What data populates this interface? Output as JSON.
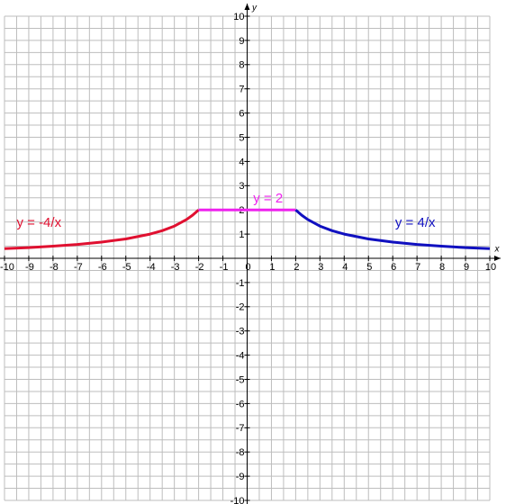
{
  "chart_data": {
    "type": "line",
    "xlabel": "x",
    "ylabel": "y",
    "xlim": [
      -10,
      10
    ],
    "ylim": [
      -10,
      10
    ],
    "xticks": [
      -10,
      -9,
      -8,
      -7,
      -6,
      -5,
      -4,
      -3,
      -2,
      -1,
      0,
      1,
      2,
      3,
      4,
      5,
      6,
      7,
      8,
      9,
      10
    ],
    "yticks": [
      -10,
      -9,
      -8,
      -7,
      -6,
      -5,
      -4,
      -3,
      -2,
      -1,
      1,
      2,
      3,
      4,
      5,
      6,
      7,
      8,
      9,
      10
    ],
    "grid": true,
    "minor_grid": true,
    "series": [
      {
        "name": "y = -4/x",
        "color": "#e01030",
        "x": [
          -10,
          -9,
          -8,
          -7,
          -6,
          -5,
          -4,
          -3.5,
          -3,
          -2.5,
          -2.25,
          -2
        ],
        "values": [
          0.4,
          0.44,
          0.5,
          0.57,
          0.67,
          0.8,
          1,
          1.14,
          1.33,
          1.6,
          1.78,
          2
        ]
      },
      {
        "name": "y = 2",
        "color": "#ee22ee",
        "x": [
          -2,
          2
        ],
        "values": [
          2,
          2
        ]
      },
      {
        "name": "y = 4/x",
        "color": "#1010c0",
        "x": [
          2,
          2.25,
          2.5,
          3,
          3.5,
          4,
          5,
          6,
          7,
          8,
          9,
          10
        ],
        "values": [
          2,
          1.78,
          1.6,
          1.33,
          1.14,
          1,
          0.8,
          0.67,
          0.57,
          0.5,
          0.44,
          0.4
        ]
      }
    ]
  }
}
